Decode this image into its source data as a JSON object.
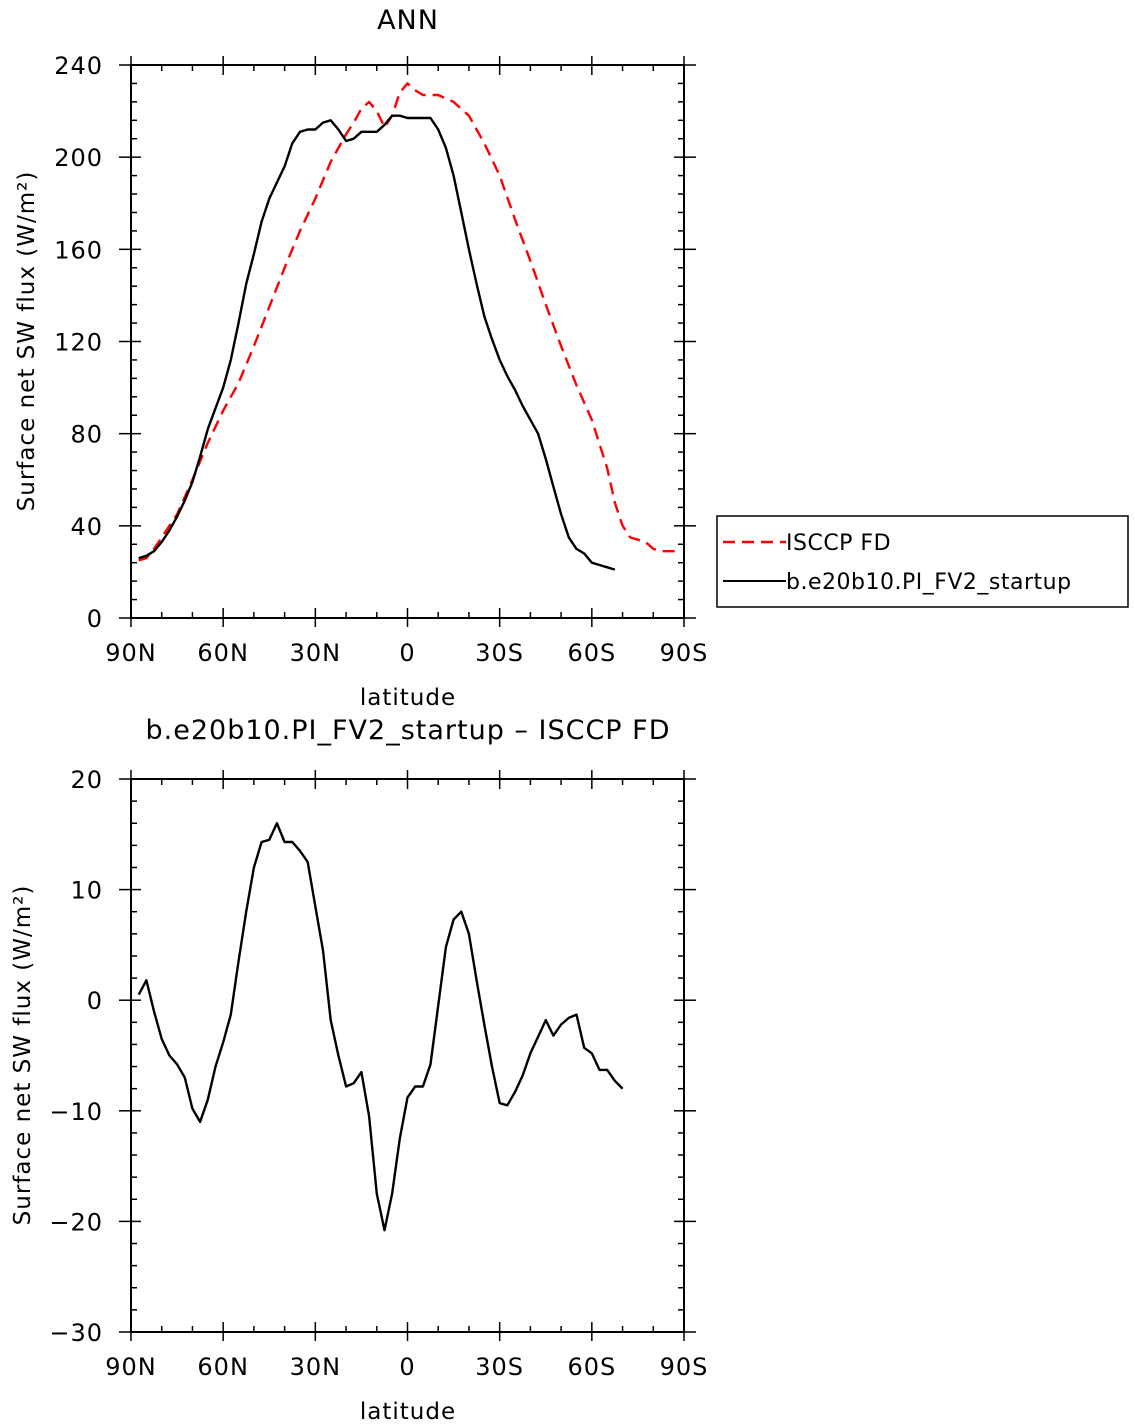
{
  "chart_data": [
    {
      "type": "line",
      "title": "ANN",
      "xlabel": "latitude",
      "ylabel": "Surface net SW flux (W/m²)",
      "xlim": [
        90,
        -90
      ],
      "ylim": [
        0,
        240
      ],
      "xticks": [
        {
          "v": 90,
          "label": "90N"
        },
        {
          "v": 60,
          "label": "60N"
        },
        {
          "v": 30,
          "label": "30N"
        },
        {
          "v": 0,
          "label": "0"
        },
        {
          "v": -30,
          "label": "30S"
        },
        {
          "v": -60,
          "label": "60S"
        },
        {
          "v": -90,
          "label": "90S"
        }
      ],
      "yticks": [
        0,
        40,
        80,
        120,
        160,
        200,
        240
      ],
      "legend_position": "right",
      "series": [
        {
          "name": "ISCCP FD",
          "color": "#ff0000",
          "dash": true,
          "points": [
            [
              87.5,
              25
            ],
            [
              85,
              26
            ],
            [
              82.5,
              30
            ],
            [
              80,
              35
            ],
            [
              75,
              45
            ],
            [
              70,
              60
            ],
            [
              65,
              76
            ],
            [
              60,
              90
            ],
            [
              55,
              102
            ],
            [
              50,
              118
            ],
            [
              45,
              135
            ],
            [
              40,
              152
            ],
            [
              35,
              168
            ],
            [
              30,
              182
            ],
            [
              25,
              198
            ],
            [
              20,
              210
            ],
            [
              17.5,
              215
            ],
            [
              15,
              221
            ],
            [
              12.5,
              224
            ],
            [
              10,
              220
            ],
            [
              7.5,
              213
            ],
            [
              5,
              218
            ],
            [
              2.5,
              228
            ],
            [
              0,
              232
            ],
            [
              -2.5,
              229
            ],
            [
              -5,
              227
            ],
            [
              -10,
              227
            ],
            [
              -15,
              224
            ],
            [
              -20,
              218
            ],
            [
              -25,
              206
            ],
            [
              -30,
              192
            ],
            [
              -35,
              173
            ],
            [
              -40,
              155
            ],
            [
              -45,
              136
            ],
            [
              -50,
              118
            ],
            [
              -55,
              101
            ],
            [
              -60,
              86
            ],
            [
              -65,
              65
            ],
            [
              -67.5,
              50
            ],
            [
              -70,
              40
            ],
            [
              -72.5,
              35
            ],
            [
              -75,
              34
            ],
            [
              -77.5,
              33
            ],
            [
              -80,
              30
            ],
            [
              -82.5,
              29
            ],
            [
              -85,
              29
            ],
            [
              -87.5,
              29
            ]
          ]
        },
        {
          "name": "b.e20b10.PI_FV2_startup",
          "color": "#000000",
          "dash": false,
          "points": [
            [
              87.5,
              26
            ],
            [
              85,
              27
            ],
            [
              82.5,
              29
            ],
            [
              80,
              33
            ],
            [
              77.5,
              38
            ],
            [
              75,
              44
            ],
            [
              72.5,
              51
            ],
            [
              70,
              59
            ],
            [
              67.5,
              70
            ],
            [
              65,
              82
            ],
            [
              62.5,
              91
            ],
            [
              60,
              100
            ],
            [
              57.5,
              112
            ],
            [
              55,
              128
            ],
            [
              52.5,
              145
            ],
            [
              50,
              158
            ],
            [
              47.5,
              172
            ],
            [
              45,
              182
            ],
            [
              42.5,
              189
            ],
            [
              40,
              196
            ],
            [
              37.5,
              206
            ],
            [
              35,
              211
            ],
            [
              32.5,
              212
            ],
            [
              30,
              212
            ],
            [
              27.5,
              215
            ],
            [
              25,
              216
            ],
            [
              22.5,
              212
            ],
            [
              20,
              207
            ],
            [
              17.5,
              208
            ],
            [
              15,
              211
            ],
            [
              12.5,
              211
            ],
            [
              10,
              211
            ],
            [
              7.5,
              214
            ],
            [
              5,
              218
            ],
            [
              2.5,
              218
            ],
            [
              0,
              217
            ],
            [
              -2.5,
              217
            ],
            [
              -5,
              217
            ],
            [
              -7.5,
              217
            ],
            [
              -10,
              212
            ],
            [
              -12.5,
              204
            ],
            [
              -15,
              192
            ],
            [
              -17.5,
              176
            ],
            [
              -20,
              160
            ],
            [
              -22.5,
              145
            ],
            [
              -25,
              131
            ],
            [
              -27.5,
              121
            ],
            [
              -30,
              112
            ],
            [
              -32.5,
              105
            ],
            [
              -35,
              99
            ],
            [
              -37.5,
              92
            ],
            [
              -40,
              86
            ],
            [
              -42.5,
              80
            ],
            [
              -45,
              69
            ],
            [
              -47.5,
              57
            ],
            [
              -50,
              45
            ],
            [
              -52.5,
              35
            ],
            [
              -55,
              30
            ],
            [
              -57.5,
              28
            ],
            [
              -60,
              24
            ],
            [
              -62.5,
              23
            ],
            [
              -65,
              22
            ],
            [
              -67.5,
              21
            ]
          ]
        }
      ]
    },
    {
      "type": "line",
      "title": "b.e20b10.PI_FV2_startup – ISCCP FD",
      "xlabel": "latitude",
      "ylabel": "Surface net SW flux (W/m²)",
      "xlim": [
        90,
        -90
      ],
      "ylim": [
        -30,
        20
      ],
      "xticks": [
        {
          "v": 90,
          "label": "90N"
        },
        {
          "v": 60,
          "label": "60N"
        },
        {
          "v": 30,
          "label": "30N"
        },
        {
          "v": 0,
          "label": "0"
        },
        {
          "v": -30,
          "label": "30S"
        },
        {
          "v": -60,
          "label": "60S"
        },
        {
          "v": -90,
          "label": "90S"
        }
      ],
      "yticks": [
        {
          "v": 20,
          "label": "20"
        },
        {
          "v": 10,
          "label": "10"
        },
        {
          "v": 0,
          "label": "0"
        },
        {
          "v": -10,
          "label": "−10"
        },
        {
          "v": -20,
          "label": "−20"
        },
        {
          "v": -30,
          "label": "−30"
        }
      ],
      "series": [
        {
          "name": "",
          "color": "#000000",
          "dash": false,
          "points": [
            [
              87.5,
              0.5
            ],
            [
              85,
              1.8
            ],
            [
              82.5,
              -1
            ],
            [
              80,
              -3.5
            ],
            [
              77.5,
              -5
            ],
            [
              75,
              -5.8
            ],
            [
              72.5,
              -7
            ],
            [
              70,
              -9.8
            ],
            [
              67.5,
              -11
            ],
            [
              65,
              -9
            ],
            [
              62.5,
              -6
            ],
            [
              60,
              -3.8
            ],
            [
              57.5,
              -1.3
            ],
            [
              55,
              3.5
            ],
            [
              52.5,
              8
            ],
            [
              50,
              12
            ],
            [
              47.5,
              14.3
            ],
            [
              45,
              14.5
            ],
            [
              42.5,
              16
            ],
            [
              40,
              14.3
            ],
            [
              37.5,
              14.3
            ],
            [
              35,
              13.5
            ],
            [
              32.5,
              12.5
            ],
            [
              30,
              8.5
            ],
            [
              27.5,
              4.5
            ],
            [
              25,
              -1.8
            ],
            [
              22.5,
              -5
            ],
            [
              20,
              -7.8
            ],
            [
              17.5,
              -7.5
            ],
            [
              15,
              -6.5
            ],
            [
              12.5,
              -10.5
            ],
            [
              10,
              -17.5
            ],
            [
              7.5,
              -20.8
            ],
            [
              5,
              -17.5
            ],
            [
              2.5,
              -12.5
            ],
            [
              0,
              -8.8
            ],
            [
              -2.5,
              -7.8
            ],
            [
              -5,
              -7.8
            ],
            [
              -7.5,
              -5.8
            ],
            [
              -10,
              -0.5
            ],
            [
              -12.5,
              4.8
            ],
            [
              -15,
              7.3
            ],
            [
              -17.5,
              8
            ],
            [
              -20,
              6
            ],
            [
              -22.5,
              1.8
            ],
            [
              -25,
              -2.2
            ],
            [
              -27.5,
              -6
            ],
            [
              -30,
              -9.3
            ],
            [
              -32.5,
              -9.5
            ],
            [
              -35,
              -8.3
            ],
            [
              -37.5,
              -6.8
            ],
            [
              -40,
              -4.8
            ],
            [
              -42.5,
              -3.3
            ],
            [
              -45,
              -1.8
            ],
            [
              -47.5,
              -3.2
            ],
            [
              -50,
              -2.2
            ],
            [
              -52.5,
              -1.6
            ],
            [
              -55,
              -1.3
            ],
            [
              -57.5,
              -4.3
            ],
            [
              -60,
              -4.8
            ],
            [
              -62.5,
              -6.3
            ],
            [
              -65,
              -6.3
            ],
            [
              -67.5,
              -7.3
            ],
            [
              -70,
              -8
            ]
          ]
        }
      ]
    }
  ],
  "colors": {
    "observation": "#ff0000",
    "model": "#000000"
  }
}
